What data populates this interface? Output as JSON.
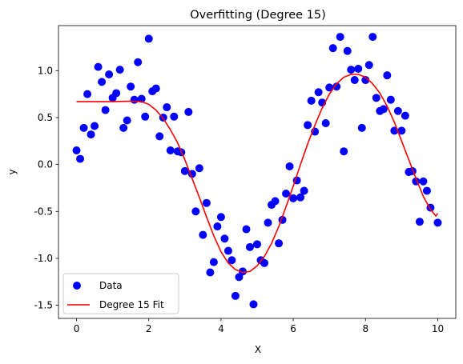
{
  "chart_data": {
    "type": "scatter",
    "title": "Overfitting (Degree 15)",
    "xlabel": "X",
    "ylabel": "y",
    "xlim": [
      -0.5,
      10.5
    ],
    "ylim": [
      -1.64,
      1.48
    ],
    "xticks": [
      "0",
      "2",
      "4",
      "6",
      "8",
      "10"
    ],
    "xtick_values": [
      0,
      2,
      4,
      6,
      8,
      10
    ],
    "yticks": [
      "-1.5",
      "-1.0",
      "-0.5",
      "0.0",
      "0.5",
      "1.0"
    ],
    "ytick_values": [
      -1.5,
      -1.0,
      -0.5,
      0.0,
      0.5,
      1.0
    ],
    "grid": false,
    "legend_position": "lower left",
    "series": [
      {
        "name": "Data",
        "kind": "scatter",
        "color": "#0000ff",
        "points": [
          [
            0.0,
            0.15
          ],
          [
            0.1,
            0.06
          ],
          [
            0.2,
            0.39
          ],
          [
            0.3,
            0.75
          ],
          [
            0.4,
            0.32
          ],
          [
            0.5,
            0.41
          ],
          [
            0.6,
            1.04
          ],
          [
            0.7,
            0.88
          ],
          [
            0.8,
            0.58
          ],
          [
            0.9,
            0.96
          ],
          [
            1.0,
            0.71
          ],
          [
            1.1,
            0.76
          ],
          [
            1.2,
            1.01
          ],
          [
            1.3,
            0.39
          ],
          [
            1.4,
            0.47
          ],
          [
            1.5,
            0.83
          ],
          [
            1.6,
            0.69
          ],
          [
            1.7,
            1.09
          ],
          [
            1.8,
            0.7
          ],
          [
            1.9,
            0.51
          ],
          [
            2.0,
            1.34
          ],
          [
            2.1,
            0.78
          ],
          [
            2.2,
            0.81
          ],
          [
            2.3,
            0.3
          ],
          [
            2.4,
            0.5
          ],
          [
            2.5,
            0.61
          ],
          [
            2.6,
            0.15
          ],
          [
            2.7,
            0.51
          ],
          [
            2.8,
            0.14
          ],
          [
            2.9,
            0.13
          ],
          [
            3.0,
            -0.07
          ],
          [
            3.1,
            0.56
          ],
          [
            3.2,
            -0.1
          ],
          [
            3.3,
            -0.5
          ],
          [
            3.4,
            -0.04
          ],
          [
            3.5,
            -0.75
          ],
          [
            3.6,
            -0.41
          ],
          [
            3.7,
            -1.15
          ],
          [
            3.8,
            -1.04
          ],
          [
            3.9,
            -0.66
          ],
          [
            4.0,
            -0.56
          ],
          [
            4.1,
            -0.79
          ],
          [
            4.2,
            -0.92
          ],
          [
            4.3,
            -1.02
          ],
          [
            4.4,
            -1.4
          ],
          [
            4.5,
            -1.2
          ],
          [
            4.6,
            -1.14
          ],
          [
            4.7,
            -0.69
          ],
          [
            4.8,
            -0.88
          ],
          [
            4.9,
            -1.49
          ],
          [
            5.0,
            -0.85
          ],
          [
            5.1,
            -1.02
          ],
          [
            5.2,
            -1.05
          ],
          [
            5.3,
            -0.62
          ],
          [
            5.4,
            -0.43
          ],
          [
            5.5,
            -0.39
          ],
          [
            5.6,
            -0.84
          ],
          [
            5.7,
            -0.59
          ],
          [
            5.8,
            -0.31
          ],
          [
            5.9,
            -0.02
          ],
          [
            6.0,
            -0.36
          ],
          [
            6.1,
            -0.17
          ],
          [
            6.2,
            -0.35
          ],
          [
            6.3,
            -0.28
          ],
          [
            6.4,
            0.42
          ],
          [
            6.5,
            0.68
          ],
          [
            6.6,
            0.35
          ],
          [
            6.7,
            0.77
          ],
          [
            6.8,
            0.66
          ],
          [
            6.9,
            0.44
          ],
          [
            7.0,
            0.82
          ],
          [
            7.1,
            1.24
          ],
          [
            7.2,
            0.83
          ],
          [
            7.3,
            1.36
          ],
          [
            7.4,
            0.14
          ],
          [
            7.5,
            1.21
          ],
          [
            7.6,
            1.01
          ],
          [
            7.7,
            0.9
          ],
          [
            7.8,
            1.02
          ],
          [
            7.9,
            0.39
          ],
          [
            8.0,
            0.9
          ],
          [
            8.1,
            1.06
          ],
          [
            8.2,
            1.36
          ],
          [
            8.3,
            0.71
          ],
          [
            8.4,
            0.57
          ],
          [
            8.5,
            0.59
          ],
          [
            8.6,
            0.95
          ],
          [
            8.7,
            0.69
          ],
          [
            8.8,
            0.36
          ],
          [
            8.9,
            0.57
          ],
          [
            9.0,
            0.36
          ],
          [
            9.1,
            0.52
          ],
          [
            9.2,
            -0.08
          ],
          [
            9.3,
            -0.07
          ],
          [
            9.4,
            -0.18
          ],
          [
            9.5,
            -0.61
          ],
          [
            9.6,
            -0.18
          ],
          [
            9.7,
            -0.28
          ],
          [
            9.8,
            -0.46
          ],
          [
            10.0,
            -0.62
          ]
        ]
      },
      {
        "name": "Degree 15 Fit",
        "kind": "line",
        "color": "#ff0000",
        "points": [
          [
            0.0,
            0.67
          ],
          [
            0.5,
            0.67
          ],
          [
            1.0,
            0.67
          ],
          [
            1.5,
            0.675
          ],
          [
            1.8,
            0.67
          ],
          [
            2.0,
            0.64
          ],
          [
            2.2,
            0.58
          ],
          [
            2.4,
            0.49
          ],
          [
            2.6,
            0.37
          ],
          [
            2.8,
            0.23
          ],
          [
            3.0,
            0.05
          ],
          [
            3.2,
            -0.15
          ],
          [
            3.4,
            -0.35
          ],
          [
            3.6,
            -0.56
          ],
          [
            3.8,
            -0.76
          ],
          [
            4.0,
            -0.93
          ],
          [
            4.2,
            -1.05
          ],
          [
            4.4,
            -1.12
          ],
          [
            4.6,
            -1.15
          ],
          [
            4.8,
            -1.14
          ],
          [
            5.0,
            -1.08
          ],
          [
            5.2,
            -0.98
          ],
          [
            5.4,
            -0.84
          ],
          [
            5.6,
            -0.66
          ],
          [
            5.8,
            -0.45
          ],
          [
            6.0,
            -0.23
          ],
          [
            6.2,
            0.0
          ],
          [
            6.4,
            0.22
          ],
          [
            6.6,
            0.42
          ],
          [
            6.8,
            0.6
          ],
          [
            7.0,
            0.75
          ],
          [
            7.2,
            0.86
          ],
          [
            7.4,
            0.93
          ],
          [
            7.6,
            0.96
          ],
          [
            7.8,
            0.96
          ],
          [
            8.0,
            0.93
          ],
          [
            8.2,
            0.86
          ],
          [
            8.4,
            0.76
          ],
          [
            8.6,
            0.62
          ],
          [
            8.8,
            0.45
          ],
          [
            9.0,
            0.25
          ],
          [
            9.2,
            0.05
          ],
          [
            9.4,
            -0.15
          ],
          [
            9.6,
            -0.34
          ],
          [
            9.8,
            -0.48
          ],
          [
            9.95,
            -0.55
          ],
          [
            10.0,
            -0.52
          ]
        ]
      }
    ]
  }
}
